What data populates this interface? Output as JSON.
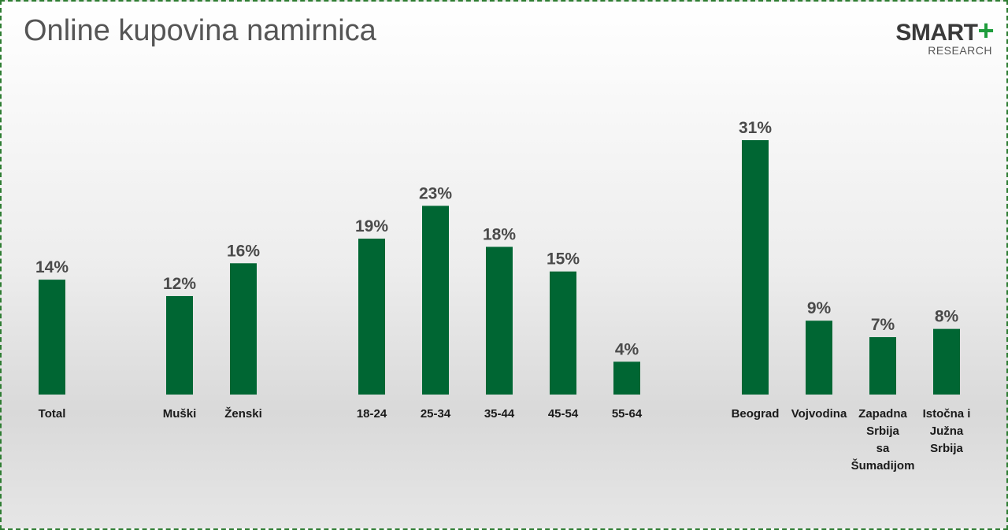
{
  "title": "Online kupovina namirnica",
  "logo": {
    "main": "SMART",
    "plus": "+",
    "sub": "RESEARCH"
  },
  "colors": {
    "bar": "#006633",
    "accent": "#1e9c3c",
    "title": "#555555"
  },
  "chart_data": {
    "type": "bar",
    "title": "Online kupovina namirnica",
    "xlabel": "",
    "ylabel": "",
    "grid": false,
    "categories": [
      "Total",
      "Muški",
      "Ženski",
      "18-24",
      "25-34",
      "35-44",
      "45-54",
      "55-64",
      "Beograd",
      "Vojvodina",
      "Zapadna Srbija sa Šumadijom",
      "Istočna i Južna Srbija"
    ],
    "category_lines": [
      [
        "Total"
      ],
      [
        "Muški"
      ],
      [
        "Ženski"
      ],
      [
        "18-24"
      ],
      [
        "25-34"
      ],
      [
        "35-44"
      ],
      [
        "45-54"
      ],
      [
        "55-64"
      ],
      [
        "Beograd"
      ],
      [
        "Vojvodina"
      ],
      [
        "Zapadna",
        "Srbija",
        "sa",
        "Šumadijom"
      ],
      [
        "Istočna i",
        "Južna",
        "Srbija"
      ]
    ],
    "values": [
      14,
      12,
      16,
      19,
      23,
      18,
      15,
      4,
      31,
      9,
      7,
      8
    ],
    "value_labels": [
      "14%",
      "12%",
      "16%",
      "19%",
      "23%",
      "18%",
      "15%",
      "4%",
      "31%",
      "9%",
      "7%",
      "8%"
    ],
    "groups": [
      {
        "categories": [
          "Total"
        ]
      },
      {
        "categories": [
          "Muški",
          "Ženski"
        ]
      },
      {
        "categories": [
          "18-24",
          "25-34",
          "35-44",
          "45-54",
          "55-64"
        ]
      },
      {
        "categories": [
          "Beograd",
          "Vojvodina",
          "Zapadna Srbija sa Šumadijom",
          "Istočna i Južna Srbija"
        ]
      }
    ],
    "ylim": [
      0,
      31
    ]
  }
}
